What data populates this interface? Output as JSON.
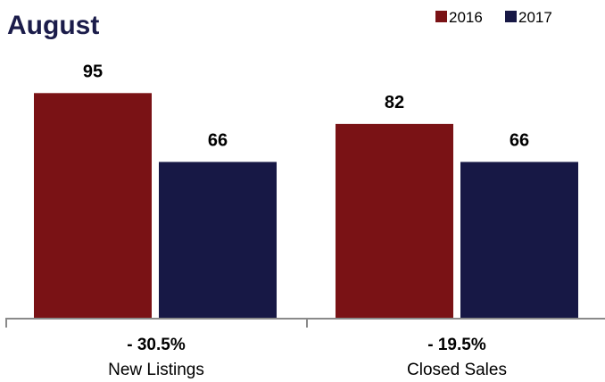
{
  "colors": {
    "series_2016": "#7a1215",
    "series_2017": "#171845",
    "title": "#1b1c4a",
    "axis": "#8a8a8a"
  },
  "chart_data": {
    "type": "bar",
    "title": "August",
    "categories": [
      "New Listings",
      "Closed Sales"
    ],
    "change_labels": [
      "- 30.5%",
      "- 19.5%"
    ],
    "series": [
      {
        "name": "2016",
        "values": [
          95,
          82
        ]
      },
      {
        "name": "2017",
        "values": [
          66,
          66
        ]
      }
    ],
    "ylim": [
      0,
      100
    ],
    "grid": false,
    "legend_position": "top-right"
  }
}
